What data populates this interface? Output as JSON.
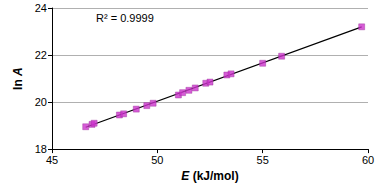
{
  "chart_data": {
    "type": "scatter",
    "x_label": "E (kJ/mol)",
    "y_label": "ln A",
    "annotations": [
      "R² = 0.9999"
    ],
    "xlim": [
      45,
      60
    ],
    "xticks": [
      45,
      50,
      55,
      60
    ],
    "ylim": [
      18,
      24
    ],
    "yticks": [
      18,
      20,
      22,
      24
    ],
    "grid": true,
    "series": [
      {
        "type": "scatter",
        "color": "#cc33cc",
        "marker": "square",
        "x": [
          46.6,
          46.9,
          47.0,
          48.2,
          48.4,
          49.0,
          49.5,
          49.8,
          51.0,
          51.2,
          51.5,
          51.8,
          52.3,
          52.5,
          53.3,
          53.5,
          55.0,
          55.9,
          59.7
        ],
        "values": [
          18.95,
          19.05,
          19.1,
          19.45,
          19.5,
          19.7,
          19.85,
          19.95,
          20.3,
          20.4,
          20.5,
          20.6,
          20.8,
          20.85,
          21.15,
          21.2,
          21.65,
          21.95,
          23.2
        ]
      },
      {
        "type": "line",
        "color": "#000000",
        "line_style": "solid",
        "x": [
          46.6,
          59.7
        ],
        "values": [
          18.93,
          23.2
        ]
      }
    ]
  }
}
